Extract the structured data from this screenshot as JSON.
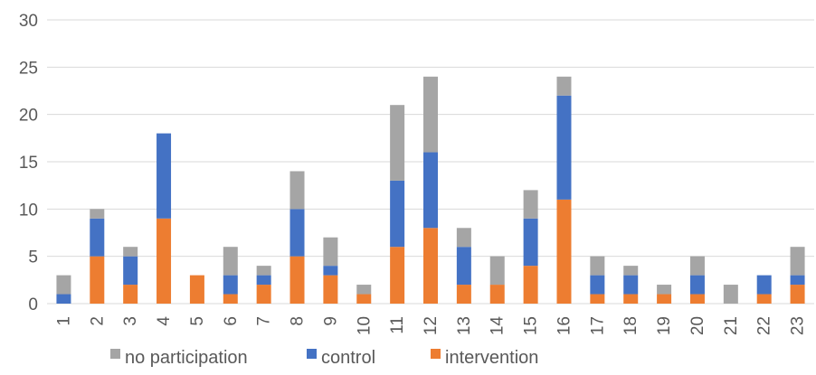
{
  "chart_data": {
    "type": "bar",
    "stacked": true,
    "title": "",
    "xlabel": "",
    "ylabel": "",
    "ylim": [
      0,
      30
    ],
    "yticks": [
      0,
      5,
      10,
      15,
      20,
      25,
      30
    ],
    "grid": true,
    "legend_position": "bottom-left",
    "categories": [
      "1",
      "2",
      "3",
      "4",
      "5",
      "6",
      "7",
      "8",
      "9",
      "10",
      "11",
      "12",
      "13",
      "14",
      "15",
      "16",
      "17",
      "18",
      "19",
      "20",
      "21",
      "22",
      "23"
    ],
    "series": [
      {
        "name": "intervention",
        "color": "#ED7D31",
        "values": [
          0,
          5,
          2,
          9,
          3,
          1,
          2,
          5,
          3,
          1,
          6,
          8,
          2,
          2,
          4,
          11,
          1,
          1,
          1,
          1,
          0,
          1,
          2
        ]
      },
      {
        "name": "control",
        "color": "#4472C4",
        "values": [
          1,
          4,
          3,
          9,
          0,
          2,
          1,
          5,
          1,
          0,
          7,
          8,
          4,
          0,
          5,
          11,
          2,
          2,
          0,
          2,
          0,
          2,
          1
        ]
      },
      {
        "name": "no participation",
        "color": "#A5A5A5",
        "values": [
          2,
          1,
          1,
          0,
          0,
          3,
          1,
          4,
          3,
          1,
          8,
          8,
          2,
          3,
          3,
          2,
          2,
          1,
          1,
          2,
          2,
          0,
          3
        ]
      }
    ],
    "legend_order": [
      "no participation",
      "control",
      "intervention"
    ]
  }
}
